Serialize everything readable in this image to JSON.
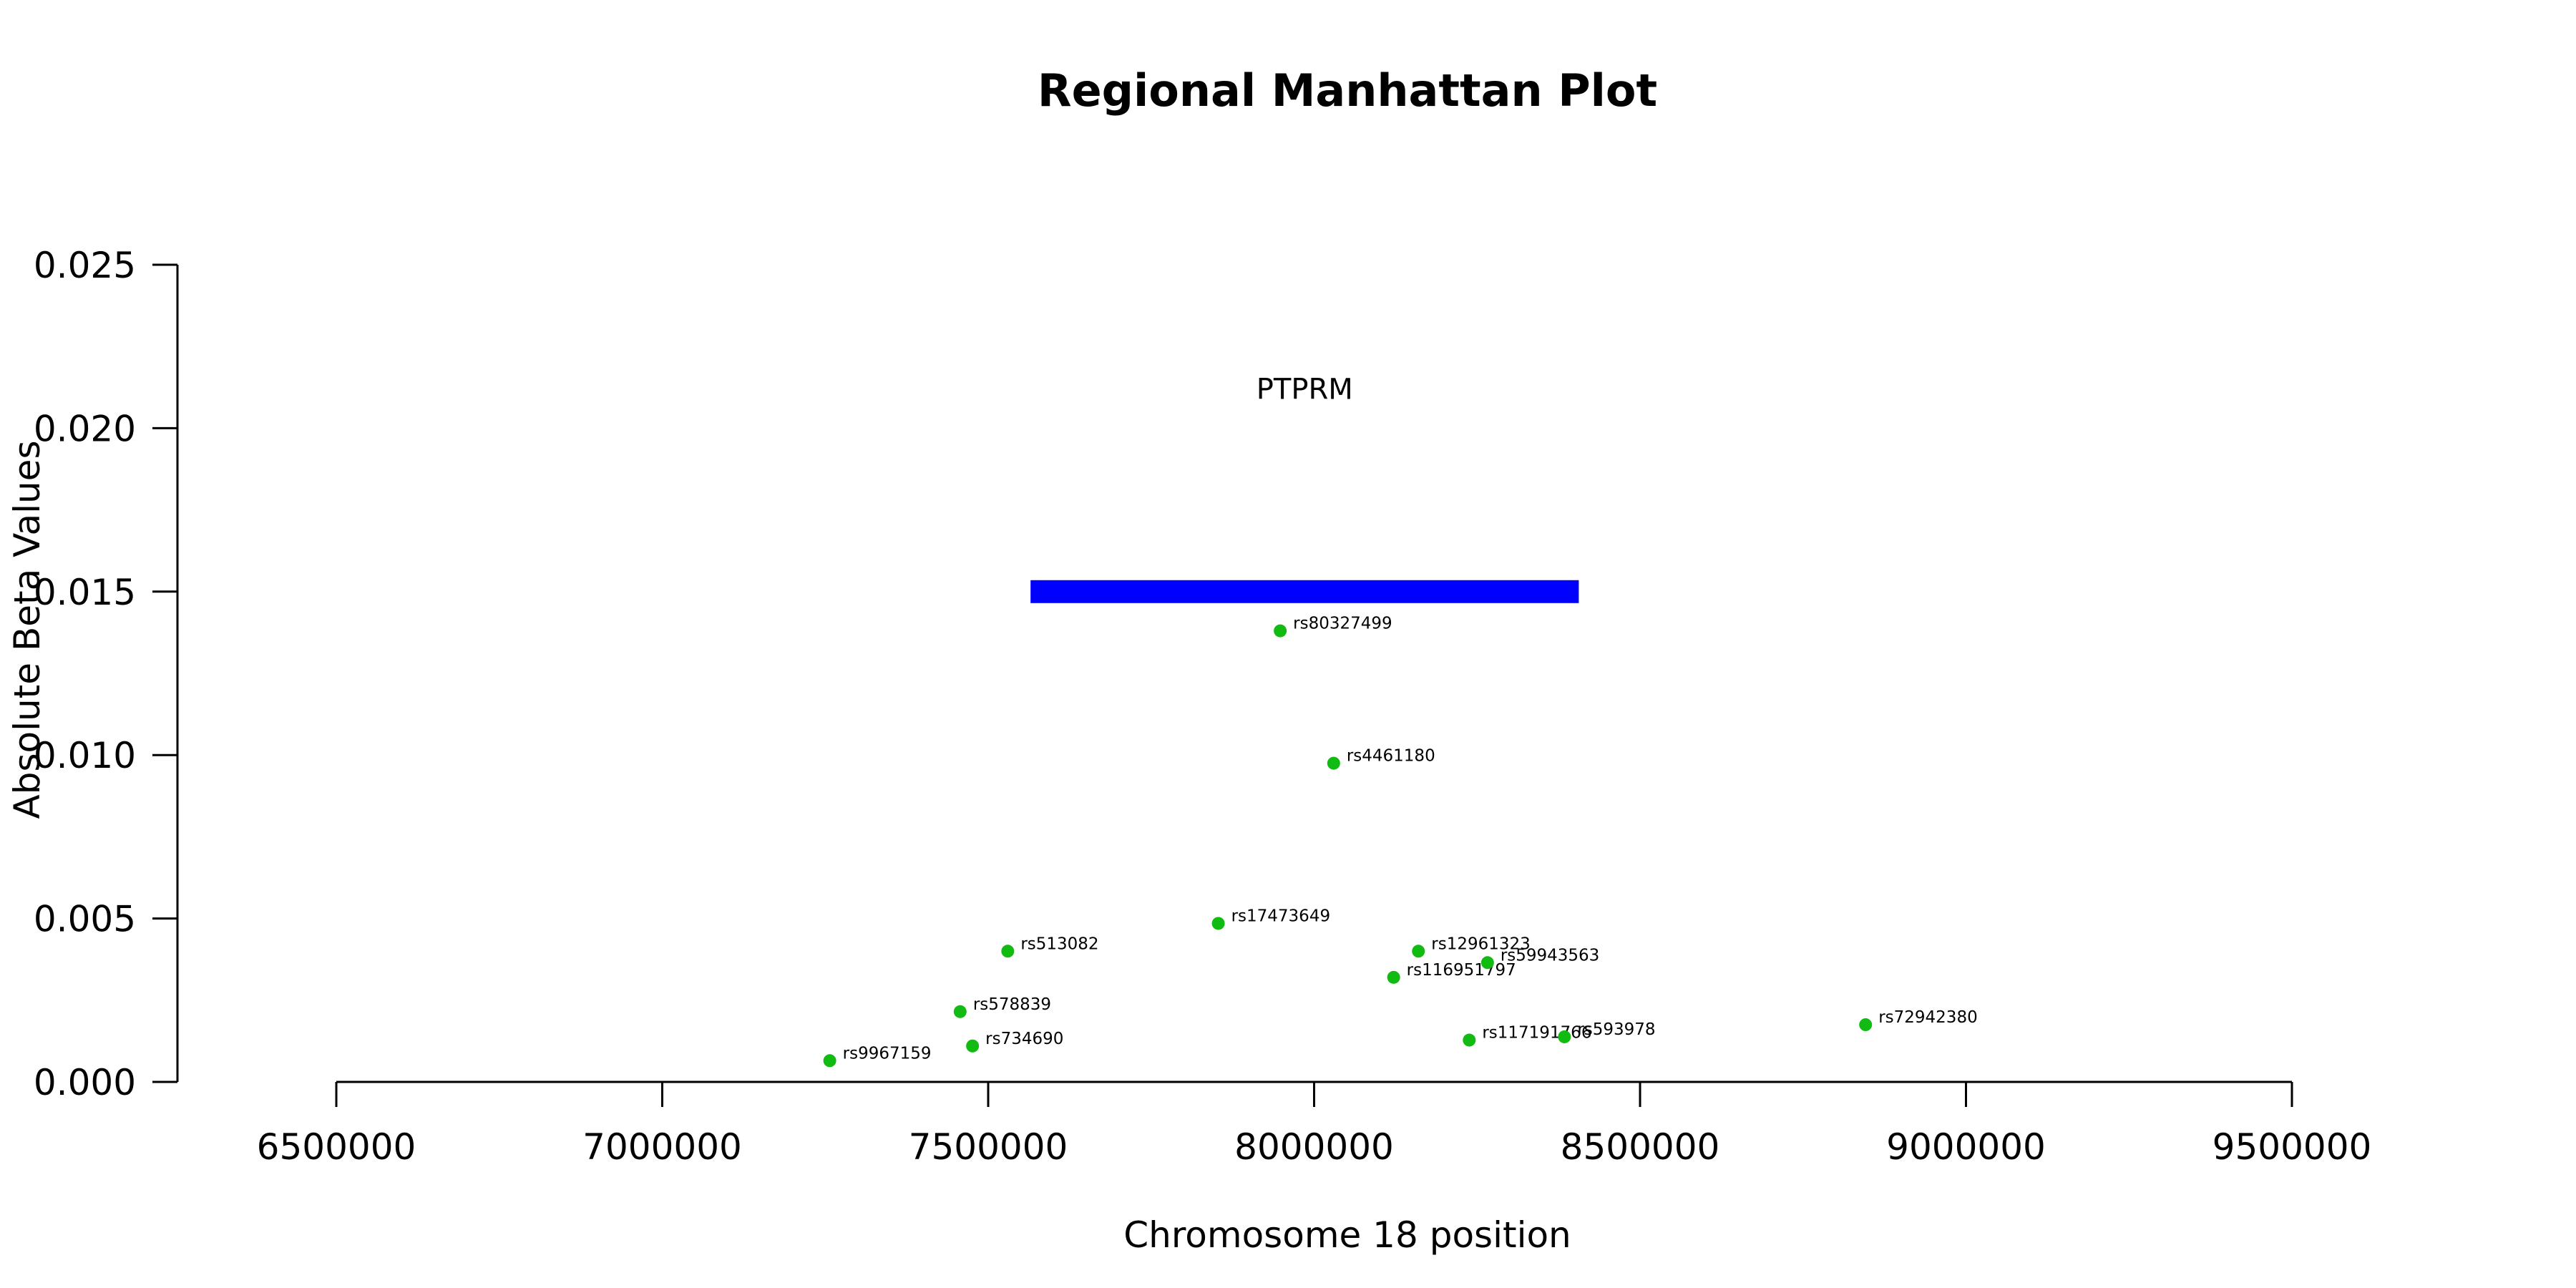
{
  "chart_data": {
    "type": "scatter",
    "title": "Regional Manhattan Plot",
    "xlabel": "Chromosome 18 position",
    "ylabel": "Absolute Beta Values",
    "xlim": [
      6500000,
      9500000
    ],
    "ylim": [
      0,
      0.025
    ],
    "x_ticks": [
      6500000,
      7000000,
      7500000,
      8000000,
      8500000,
      9000000,
      9500000
    ],
    "y_ticks": [
      0.0,
      0.005,
      0.01,
      0.015,
      0.02,
      0.025
    ],
    "x_tick_labels": [
      "6500000",
      "7000000",
      "7500000",
      "8000000",
      "8500000",
      "9000000",
      "9500000"
    ],
    "y_tick_labels": [
      "0.000",
      "0.005",
      "0.010",
      "0.015",
      "0.020",
      "0.025"
    ],
    "grid": false,
    "point_color": "#11bb11",
    "gene": {
      "name": "PTPRM",
      "start": 7565000,
      "end": 8406000,
      "y": 0.015,
      "color": "#0000ff"
    },
    "points": [
      {
        "label": "rs9967159",
        "x": 7257000,
        "y": 0.00065
      },
      {
        "label": "rs734690",
        "x": 7476000,
        "y": 0.0011
      },
      {
        "label": "rs578839",
        "x": 7457000,
        "y": 0.00215
      },
      {
        "label": "rs513082",
        "x": 7530000,
        "y": 0.004
      },
      {
        "label": "rs17473649",
        "x": 7853000,
        "y": 0.00485
      },
      {
        "label": "rs80327499",
        "x": 7948000,
        "y": 0.0138
      },
      {
        "label": "rs4461180",
        "x": 8030000,
        "y": 0.00975
      },
      {
        "label": "rs116951797",
        "x": 8122000,
        "y": 0.0032
      },
      {
        "label": "rs12961323",
        "x": 8160000,
        "y": 0.004
      },
      {
        "label": "rs59943563",
        "x": 8266000,
        "y": 0.00365
      },
      {
        "label": "rs117191766",
        "x": 8238000,
        "y": 0.00128
      },
      {
        "label": "rs593978",
        "x": 8384000,
        "y": 0.00138
      },
      {
        "label": "rs72942380",
        "x": 8846000,
        "y": 0.00175
      }
    ]
  }
}
